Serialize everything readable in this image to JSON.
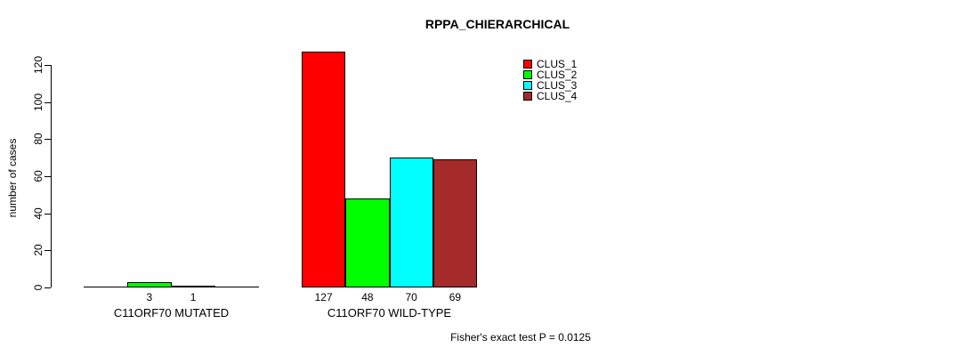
{
  "chart_data": {
    "type": "bar",
    "title": "RPPA_CHIERARCHICAL",
    "ylabel": "number of cases",
    "xlabel": "",
    "ylim": [
      0,
      130
    ],
    "yticks": [
      0,
      20,
      40,
      60,
      80,
      100,
      120
    ],
    "grid": false,
    "background": "#FFFFFF",
    "axis_color": "#000000",
    "text_color": "#000000",
    "legend": {
      "position": "top-right",
      "entries": [
        {
          "label": "CLUS_1",
          "color": "#FF0000"
        },
        {
          "label": "CLUS_2",
          "color": "#00FF00"
        },
        {
          "label": "CLUS_3",
          "color": "#00FFFF"
        },
        {
          "label": "CLUS_4",
          "color": "#A52A2A"
        }
      ]
    },
    "categories": [
      "C11ORF70 MUTATED",
      "C11ORF70 WILD-TYPE"
    ],
    "series": [
      {
        "name": "CLUS_1",
        "color": "#FF0000",
        "values": [
          0,
          127
        ]
      },
      {
        "name": "CLUS_2",
        "color": "#00FF00",
        "values": [
          3,
          48
        ]
      },
      {
        "name": "CLUS_3",
        "color": "#00FFFF",
        "values": [
          1,
          70
        ]
      },
      {
        "name": "CLUS_4",
        "color": "#A52A2A",
        "values": [
          0,
          69
        ]
      }
    ],
    "groups": [
      {
        "label": "C11ORF70 MUTATED",
        "values": [
          0,
          3,
          1,
          0
        ],
        "shown_labels": [
          "",
          "3",
          "1",
          ""
        ]
      },
      {
        "label": "C11ORF70 WILD-TYPE",
        "values": [
          127,
          48,
          70,
          69
        ],
        "shown_labels": [
          "127",
          "48",
          "70",
          "69"
        ]
      }
    ],
    "annotation": "Fisher's exact test P = 0.0125"
  }
}
